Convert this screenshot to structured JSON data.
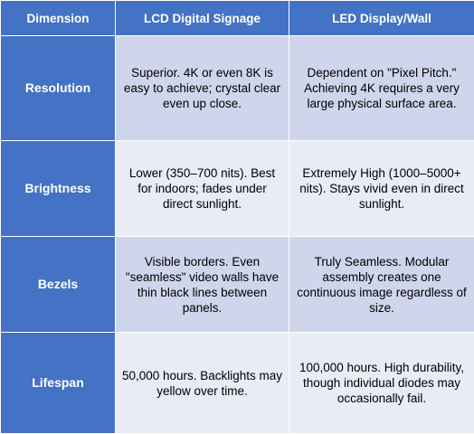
{
  "header": {
    "col1": "Dimension",
    "col2": "LCD Digital Signage",
    "col3": "LED Display/Wall"
  },
  "rows": [
    {
      "dimension": "Resolution",
      "lcd": "Superior. 4K or even 8K is easy to achieve; crystal clear even up close.",
      "led": "Dependent on \"Pixel Pitch.\" Achieving 4K requires a very large physical surface area."
    },
    {
      "dimension": "Brightness",
      "lcd": "Lower (350–700 nits). Best for indoors; fades under direct sunlight.",
      "led": "Extremely High (1000–5000+ nits). Stays vivid even in direct sunlight."
    },
    {
      "dimension": "Bezels",
      "lcd": "Visible borders. Even \"seamless\" video walls have thin black lines between panels.",
      "led": "Truly Seamless. Modular assembly creates one continuous image regardless of size."
    },
    {
      "dimension": "Lifespan",
      "lcd": "50,000 hours. Backlights may yellow over time.",
      "led": "100,000 hours. High durability, though individual diodes may occasionally fail."
    }
  ],
  "colors": {
    "header_bg": "#4472c4",
    "row_odd_bg": "#cfd5ea",
    "row_even_bg": "#e9ebf5"
  }
}
